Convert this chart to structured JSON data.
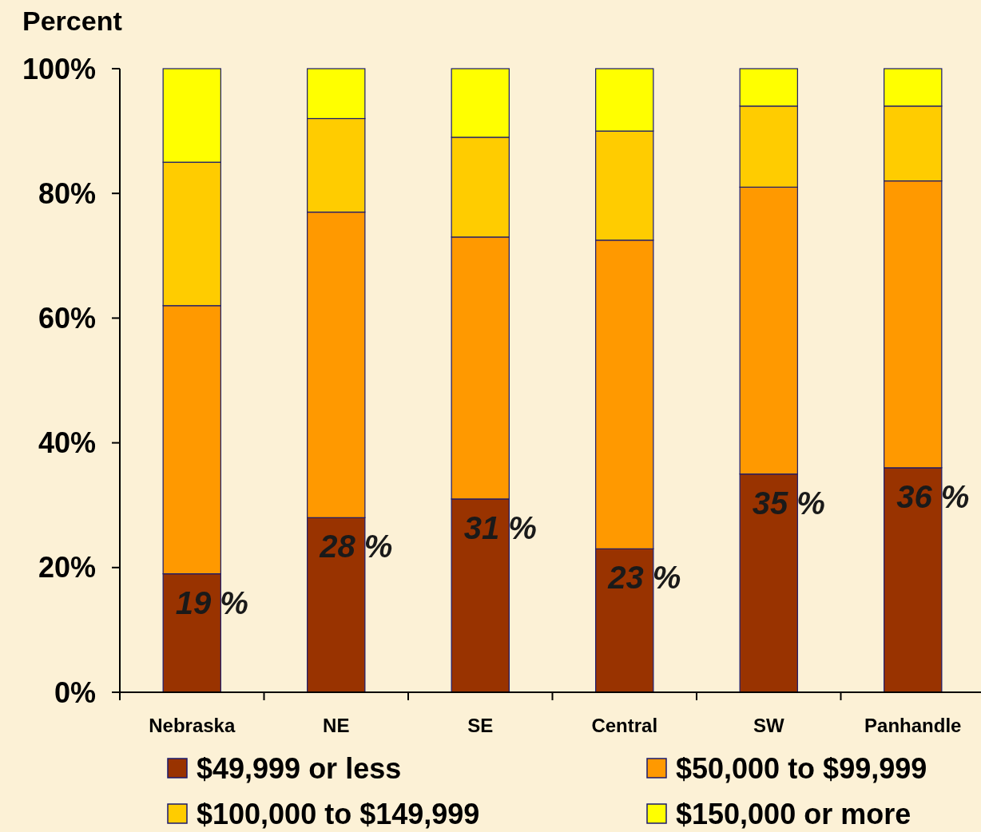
{
  "chart_data": {
    "type": "bar",
    "stacked": true,
    "ylabel": "Percent",
    "categories": [
      "Nebraska",
      "NE",
      "SE",
      "Central",
      "SW",
      "Panhandle"
    ],
    "series": [
      {
        "name": "$49,999 or less",
        "color": "#993300",
        "values": [
          19,
          28,
          31,
          23,
          35,
          36
        ],
        "value_labels": [
          "19 %",
          "28 %",
          "31 %",
          "23 %",
          "35 %",
          "36 %"
        ]
      },
      {
        "name": "$50,000 to $99,999",
        "color": "#ff9900",
        "values": [
          43,
          49,
          42,
          49.5,
          46,
          46
        ]
      },
      {
        "name": "$100,000 to $149,999",
        "color": "#ffcc00",
        "values": [
          23,
          15,
          16,
          17.5,
          13,
          12
        ]
      },
      {
        "name": "$150,000 or more",
        "color": "#ffff00",
        "values": [
          15,
          8,
          11,
          10,
          6,
          6
        ]
      }
    ],
    "ylim": [
      0,
      100
    ],
    "yticks": [
      {
        "value": 0,
        "label": "0%"
      },
      {
        "value": 20,
        "label": "20%"
      },
      {
        "value": 40,
        "label": "40%"
      },
      {
        "value": 60,
        "label": "60%"
      },
      {
        "value": 80,
        "label": "80%"
      },
      {
        "value": 100,
        "label": "100%"
      }
    ],
    "grid": false,
    "legend": "bottom"
  }
}
